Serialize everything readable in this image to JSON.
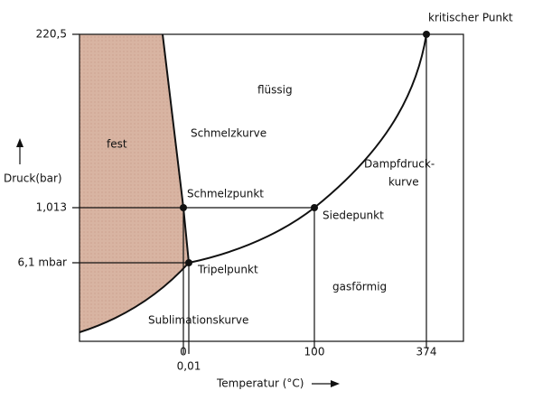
{
  "axes": {
    "y_label": "Druck(bar)",
    "x_label": "Temperatur (°C)",
    "y_ticks": [
      "220,5",
      "1,013",
      "6,1 mbar"
    ],
    "x_ticks": [
      "0",
      "0,01",
      "100",
      "374"
    ]
  },
  "regions": [
    "fest",
    "flüssig",
    "gasförmig"
  ],
  "curves": {
    "melting": "Schmelzkurve",
    "vapor": [
      "Dampfdruck-",
      "kurve"
    ],
    "sublimation": "Sublimationskurve"
  },
  "points": [
    "kritischer Punkt",
    "Schmelzpunkt",
    "Siedepunkt",
    "Tripelpunkt"
  ]
}
